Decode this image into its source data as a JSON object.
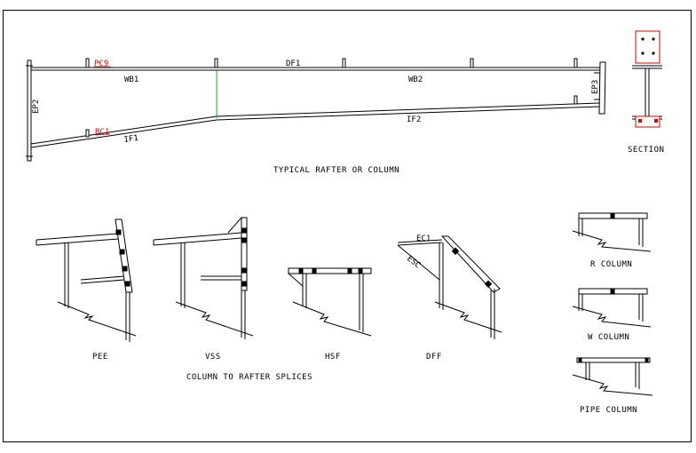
{
  "drawing": {
    "rafter_labels": {
      "pc9": "PC9",
      "df1": "DF1",
      "wb1": "WB1",
      "wb2": "WB2",
      "ep2": "EP2",
      "ep3": "EP3",
      "bc1": "BC1",
      "if1": "IF1",
      "if2": "IF2"
    },
    "captions": {
      "typical": "TYPICAL RAFTER OR COLUMN",
      "section": "SECTION",
      "splices": "COLUMN TO RAFTER SPLICES"
    },
    "splices": {
      "pee": "PEE",
      "vss": "VSS",
      "hsf": "HSF",
      "dff": "DFF",
      "ec1": "EC1",
      "esc": "ESC"
    },
    "columns": {
      "r": "R COLUMN",
      "w": "W COLUMN",
      "pipe": "PIPE COLUMN"
    },
    "colors": {
      "line": "#000000",
      "accent_red": "#e00000",
      "accent_green": "#00c000"
    }
  }
}
